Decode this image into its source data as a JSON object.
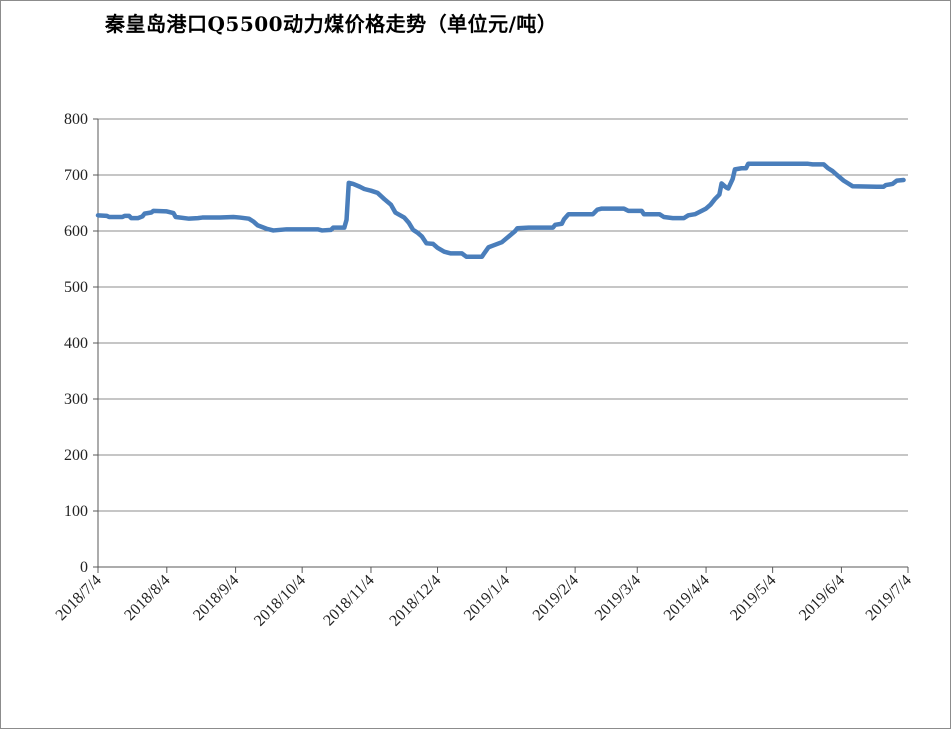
{
  "chart_data": {
    "type": "line",
    "title": "秦皇岛港口Q5500动力煤价格走势（单位元/吨）",
    "xlabel": "",
    "ylabel": "",
    "ylim": [
      0,
      800
    ],
    "yticks": [
      0,
      100,
      200,
      300,
      400,
      500,
      600,
      700,
      800
    ],
    "xlim": [
      "2018/7/4",
      "2019/7/4"
    ],
    "x_tick_labels": [
      "2018/7/4",
      "2018/8/4",
      "2018/9/4",
      "2018/10/4",
      "2018/11/4",
      "2018/12/4",
      "2019/1/4",
      "2019/2/4",
      "2019/3/4",
      "2019/4/4",
      "2019/5/4",
      "2019/6/4",
      "2019/7/4"
    ],
    "grid": "horizontal",
    "legend": "none",
    "line_color": "#4a7ebb",
    "series": [
      {
        "points": [
          [
            "2018/7/4",
            628
          ],
          [
            "2018/7/8",
            627
          ],
          [
            "2018/7/9",
            625
          ],
          [
            "2018/7/15",
            625
          ],
          [
            "2018/7/16",
            627
          ],
          [
            "2018/7/18",
            627
          ],
          [
            "2018/7/19",
            623
          ],
          [
            "2018/7/22",
            623
          ],
          [
            "2018/7/24",
            626
          ],
          [
            "2018/7/25",
            631
          ],
          [
            "2018/7/28",
            633
          ],
          [
            "2018/7/29",
            636
          ],
          [
            "2018/8/4",
            635
          ],
          [
            "2018/8/7",
            632
          ],
          [
            "2018/8/8",
            625
          ],
          [
            "2018/8/14",
            622
          ],
          [
            "2018/8/18",
            623
          ],
          [
            "2018/8/20",
            624
          ],
          [
            "2018/8/28",
            624
          ],
          [
            "2018/9/3",
            625
          ],
          [
            "2018/9/6",
            624
          ],
          [
            "2018/9/10",
            622
          ],
          [
            "2018/9/12",
            617
          ],
          [
            "2018/9/14",
            610
          ],
          [
            "2018/9/18",
            604
          ],
          [
            "2018/9/21",
            601
          ],
          [
            "2018/9/27",
            603
          ],
          [
            "2018/10/11",
            603
          ],
          [
            "2018/10/13",
            601
          ],
          [
            "2018/10/17",
            602
          ],
          [
            "2018/10/18",
            606
          ],
          [
            "2018/10/23",
            606
          ],
          [
            "2018/10/24",
            620
          ],
          [
            "2018/10/25",
            686
          ],
          [
            "2018/10/27",
            684
          ],
          [
            "2018/10/30",
            679
          ],
          [
            "2018/11/1",
            675
          ],
          [
            "2018/11/4",
            672
          ],
          [
            "2018/11/7",
            668
          ],
          [
            "2018/11/10",
            657
          ],
          [
            "2018/11/13",
            647
          ],
          [
            "2018/11/15",
            633
          ],
          [
            "2018/11/19",
            624
          ],
          [
            "2018/11/21",
            615
          ],
          [
            "2018/11/23",
            602
          ],
          [
            "2018/11/25",
            597
          ],
          [
            "2018/11/27",
            590
          ],
          [
            "2018/11/29",
            578
          ],
          [
            "2018/12/2",
            577
          ],
          [
            "2018/12/4",
            570
          ],
          [
            "2018/12/7",
            563
          ],
          [
            "2018/12/10",
            560
          ],
          [
            "2018/12/15",
            560
          ],
          [
            "2018/12/17",
            554
          ],
          [
            "2018/12/24",
            554
          ],
          [
            "2018/12/25",
            560
          ],
          [
            "2018/12/27",
            571
          ],
          [
            "2018/12/29",
            574
          ],
          [
            "2019/1/2",
            580
          ],
          [
            "2019/1/5",
            590
          ],
          [
            "2019/1/8",
            600
          ],
          [
            "2019/1/9",
            605
          ],
          [
            "2019/1/14",
            606
          ],
          [
            "2019/1/25",
            606
          ],
          [
            "2019/1/26",
            611
          ],
          [
            "2019/1/29",
            613
          ],
          [
            "2019/1/30",
            621
          ],
          [
            "2019/2/1",
            630
          ],
          [
            "2019/2/8",
            630
          ],
          [
            "2019/2/12",
            630
          ],
          [
            "2019/2/14",
            638
          ],
          [
            "2019/2/16",
            640
          ],
          [
            "2019/2/26",
            640
          ],
          [
            "2019/2/28",
            636
          ],
          [
            "2019/3/6",
            636
          ],
          [
            "2019/3/7",
            630
          ],
          [
            "2019/3/14",
            630
          ],
          [
            "2019/3/16",
            625
          ],
          [
            "2019/3/20",
            623
          ],
          [
            "2019/3/25",
            623
          ],
          [
            "2019/3/27",
            628
          ],
          [
            "2019/3/30",
            630
          ],
          [
            "2019/4/1",
            634
          ],
          [
            "2019/4/4",
            640
          ],
          [
            "2019/4/6",
            647
          ],
          [
            "2019/4/8",
            657
          ],
          [
            "2019/4/10",
            665
          ],
          [
            "2019/4/11",
            685
          ],
          [
            "2019/4/13",
            678
          ],
          [
            "2019/4/14",
            676
          ],
          [
            "2019/4/16",
            693
          ],
          [
            "2019/4/17",
            710
          ],
          [
            "2019/4/20",
            712
          ],
          [
            "2019/4/22",
            712
          ],
          [
            "2019/4/23",
            720
          ],
          [
            "2019/5/20",
            720
          ],
          [
            "2019/5/22",
            719
          ],
          [
            "2019/5/27",
            719
          ],
          [
            "2019/5/29",
            712
          ],
          [
            "2019/5/31",
            707
          ],
          [
            "2019/6/2",
            700
          ],
          [
            "2019/6/5",
            690
          ],
          [
            "2019/6/7",
            685
          ],
          [
            "2019/6/9",
            680
          ],
          [
            "2019/6/20",
            679
          ],
          [
            "2019/6/23",
            679
          ],
          [
            "2019/6/24",
            682
          ],
          [
            "2019/6/27",
            684
          ],
          [
            "2019/6/29",
            690
          ],
          [
            "2019/7/2",
            691
          ]
        ]
      }
    ]
  }
}
